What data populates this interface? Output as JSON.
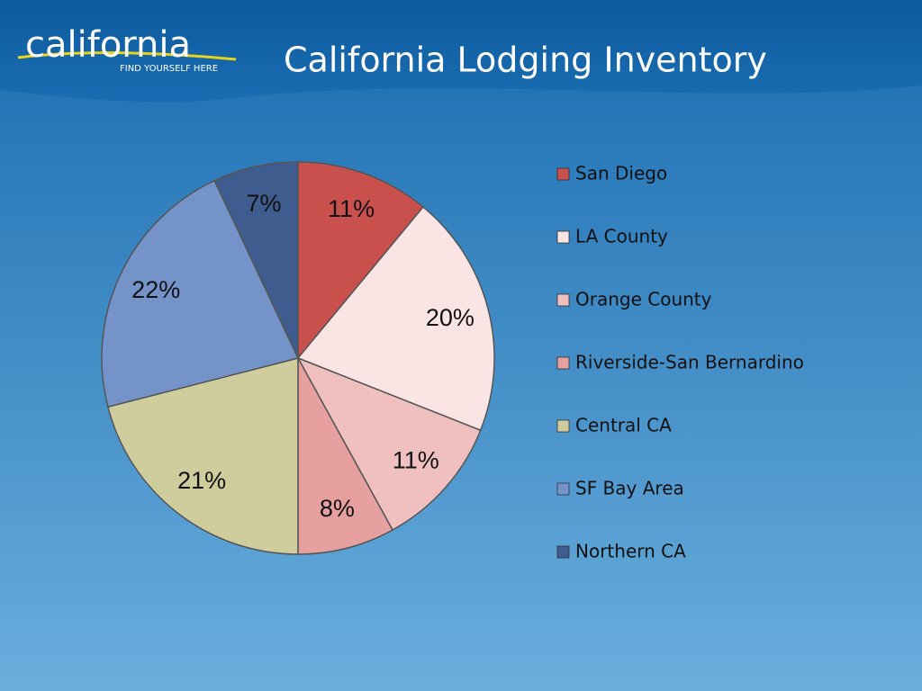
{
  "logo_text": "california",
  "logo_tagline": "FIND YOURSELF HERE",
  "chart_data": {
    "type": "pie",
    "title": "California Lodging Inventory",
    "categories": [
      "San Diego",
      "LA County",
      "Orange County",
      "Riverside-San Bernardino",
      "Central CA",
      "SF Bay Area",
      "Northern CA"
    ],
    "values": [
      11,
      20,
      11,
      8,
      21,
      22,
      7
    ],
    "value_labels": [
      "11%",
      "20%",
      "11%",
      "8%",
      "21%",
      "22%",
      "7%"
    ],
    "colors": [
      "#c9504c",
      "#fbe4e4",
      "#f0c0c0",
      "#e6a0a0",
      "#cfcc9e",
      "#7393c9",
      "#3f5c8e"
    ],
    "legend": "right"
  }
}
